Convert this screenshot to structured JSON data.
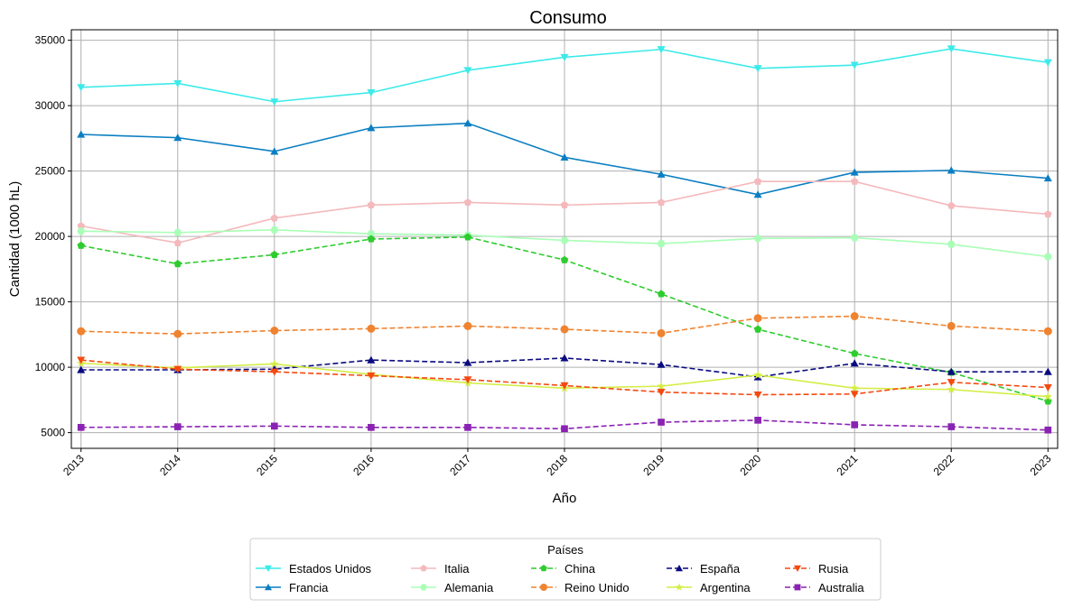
{
  "chart_data": {
    "type": "line",
    "title": "Consumo",
    "xlabel": "Año",
    "ylabel": "Cantidad (1000 hL)",
    "x": [
      2013,
      2014,
      2015,
      2016,
      2017,
      2018,
      2019,
      2020,
      2021,
      2022,
      2023
    ],
    "x_tick_labels": [
      "2013",
      "2014",
      "2015",
      "2016",
      "2017",
      "2018",
      "2019",
      "2020",
      "2021",
      "2022",
      "2023"
    ],
    "y_ticks": [
      5000,
      10000,
      15000,
      20000,
      25000,
      30000,
      35000
    ],
    "y_tick_labels": [
      "5000",
      "10000",
      "15000",
      "20000",
      "25000",
      "30000",
      "35000"
    ],
    "xlim": [
      2012.9,
      2023.1
    ],
    "ylim": [
      3800,
      35800
    ],
    "grid": true,
    "legend": {
      "title": "Países",
      "placement": "bottom-center",
      "columns": 5
    },
    "series": [
      {
        "name": "Estados Unidos",
        "color": "#3ceaea",
        "dash": "solid",
        "marker": "triangle-down",
        "values": [
          31400,
          31700,
          30300,
          31000,
          32700,
          33700,
          34300,
          32850,
          33100,
          34350,
          33300
        ]
      },
      {
        "name": "Francia",
        "color": "#0a7ec2",
        "dash": "solid",
        "marker": "triangle-up",
        "values": [
          27800,
          27550,
          26500,
          28300,
          28650,
          26050,
          24750,
          23200,
          24900,
          25050,
          24450
        ]
      },
      {
        "name": "Italia",
        "color": "#f4b9bc",
        "dash": "solid",
        "marker": "pentagon",
        "values": [
          20800,
          19500,
          21400,
          22400,
          22600,
          22400,
          22600,
          24200,
          24200,
          22350,
          21700
        ]
      },
      {
        "name": "Alemania",
        "color": "#a9ffb6",
        "dash": "solid",
        "marker": "hexagon",
        "values": [
          20400,
          20300,
          20500,
          20200,
          20100,
          19700,
          19450,
          19850,
          19900,
          19400,
          18450
        ]
      },
      {
        "name": "China",
        "color": "#2fcc2f",
        "dash": "dashed",
        "marker": "pentagon",
        "values": [
          19300,
          17900,
          18600,
          19800,
          19950,
          18200,
          15600,
          12900,
          11050,
          9600,
          7400
        ]
      },
      {
        "name": "Reino Unido",
        "color": "#f0832f",
        "dash": "dashed",
        "marker": "circle",
        "values": [
          12750,
          12550,
          12800,
          12950,
          13150,
          12900,
          12600,
          13750,
          13900,
          13150,
          12750
        ]
      },
      {
        "name": "España",
        "color": "#0a0a80",
        "dash": "dashed",
        "marker": "triangle-up",
        "values": [
          9800,
          9800,
          9850,
          10550,
          10350,
          10700,
          10200,
          9250,
          10300,
          9650,
          9650
        ]
      },
      {
        "name": "Argentina",
        "color": "#d4ed44",
        "dash": "solid",
        "marker": "star",
        "values": [
          10300,
          9950,
          10250,
          9450,
          8800,
          8400,
          8550,
          9400,
          8400,
          8300,
          7750
        ]
      },
      {
        "name": "Rusia",
        "color": "#f44a10",
        "dash": "dashed",
        "marker": "triangle-down",
        "values": [
          10550,
          9850,
          9650,
          9350,
          9050,
          8600,
          8100,
          7900,
          7950,
          8850,
          8450
        ]
      },
      {
        "name": "Australia",
        "color": "#8a22b4",
        "dash": "dashed",
        "marker": "square",
        "values": [
          5400,
          5450,
          5500,
          5400,
          5400,
          5300,
          5800,
          5950,
          5600,
          5450,
          5200
        ]
      }
    ]
  }
}
